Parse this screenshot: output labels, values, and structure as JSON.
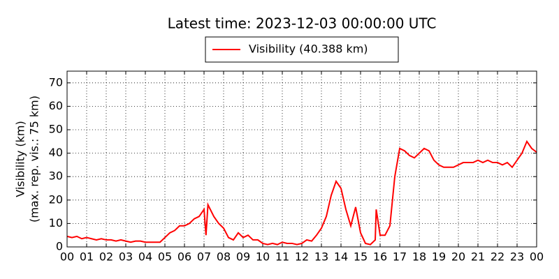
{
  "chart_data": {
    "type": "line",
    "title": "Latest time: 2023-12-03 00:00:00 UTC",
    "ylabel": [
      "Visibility (km)",
      "(max. rep. vis.: 75 km)"
    ],
    "x": [
      0,
      0.25,
      0.5,
      0.75,
      1,
      1.25,
      1.5,
      1.75,
      2,
      2.25,
      2.5,
      2.75,
      3,
      3.25,
      3.5,
      3.75,
      4,
      4.25,
      4.5,
      4.75,
      5,
      5.25,
      5.5,
      5.75,
      6,
      6.25,
      6.5,
      6.75,
      7,
      7.1,
      7.2,
      7.5,
      7.75,
      8,
      8.25,
      8.5,
      8.75,
      9,
      9.25,
      9.5,
      9.75,
      10,
      10.25,
      10.5,
      10.75,
      11,
      11.25,
      11.5,
      11.75,
      12,
      12.25,
      12.5,
      12.75,
      13,
      13.25,
      13.5,
      13.75,
      14,
      14.25,
      14.5,
      14.75,
      15,
      15.25,
      15.5,
      15.75,
      15.8,
      16,
      16.25,
      16.5,
      16.75,
      17,
      17.25,
      17.5,
      17.75,
      18,
      18.25,
      18.5,
      18.75,
      19,
      19.25,
      19.5,
      19.75,
      20,
      20.25,
      20.5,
      20.75,
      21,
      21.25,
      21.5,
      21.75,
      22,
      22.25,
      22.5,
      22.75,
      23,
      23.25,
      23.5,
      23.75,
      24
    ],
    "series": [
      {
        "name": "Visibility (40.388 km)",
        "color": "#ff0000",
        "values": [
          4.5,
          4,
          4.5,
          3.5,
          4,
          3.5,
          3,
          3.5,
          3,
          3,
          2.5,
          3,
          2.5,
          2,
          2.5,
          2.5,
          2,
          2,
          2,
          2,
          4,
          6,
          7,
          9,
          9,
          10,
          12,
          13,
          16,
          5,
          18,
          13,
          10,
          8,
          4,
          3,
          6,
          4,
          5,
          3,
          3,
          1.5,
          1,
          1.5,
          1,
          2,
          1.5,
          1.5,
          1,
          1.5,
          3,
          2.5,
          5,
          8,
          13,
          22,
          28,
          25,
          16,
          9,
          17,
          6,
          1.5,
          1,
          3,
          16,
          5,
          5,
          9,
          30,
          42,
          41,
          39,
          38,
          40,
          42,
          41,
          37,
          35,
          34,
          34,
          34,
          35,
          36,
          36,
          36,
          37,
          36,
          37,
          36,
          36,
          35,
          36,
          34,
          37,
          40,
          45,
          42,
          40.4
        ]
      }
    ],
    "xlim": [
      0,
      24
    ],
    "ylim": [
      0,
      75
    ],
    "xticks": [
      {
        "value": 0,
        "label": "00"
      },
      {
        "value": 1,
        "label": "01"
      },
      {
        "value": 2,
        "label": "02"
      },
      {
        "value": 3,
        "label": "03"
      },
      {
        "value": 4,
        "label": "04"
      },
      {
        "value": 5,
        "label": "05"
      },
      {
        "value": 6,
        "label": "06"
      },
      {
        "value": 7,
        "label": "07"
      },
      {
        "value": 8,
        "label": "08"
      },
      {
        "value": 9,
        "label": "09"
      },
      {
        "value": 10,
        "label": "10"
      },
      {
        "value": 11,
        "label": "11"
      },
      {
        "value": 12,
        "label": "12"
      },
      {
        "value": 13,
        "label": "13"
      },
      {
        "value": 14,
        "label": "14"
      },
      {
        "value": 15,
        "label": "15"
      },
      {
        "value": 16,
        "label": "16"
      },
      {
        "value": 17,
        "label": "17"
      },
      {
        "value": 18,
        "label": "18"
      },
      {
        "value": 19,
        "label": "19"
      },
      {
        "value": 20,
        "label": "20"
      },
      {
        "value": 21,
        "label": "21"
      },
      {
        "value": 22,
        "label": "22"
      },
      {
        "value": 23,
        "label": "23"
      },
      {
        "value": 24,
        "label": "00"
      }
    ],
    "yticks": [
      0,
      10,
      20,
      30,
      40,
      50,
      60,
      70
    ],
    "grid": true
  }
}
